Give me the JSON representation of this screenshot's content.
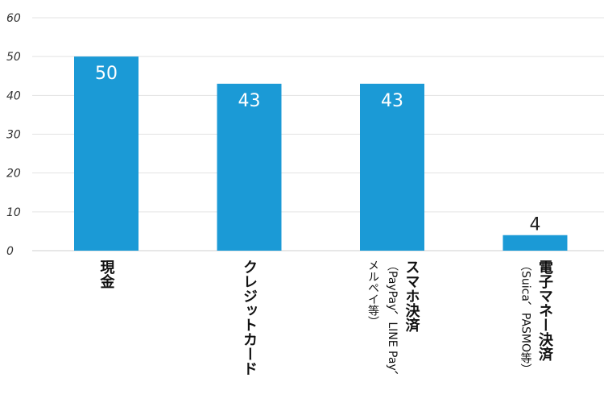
{
  "chart_data": {
    "type": "bar",
    "categories": [
      [
        "現金"
      ],
      [
        "クレジットカード"
      ],
      [
        "スマホ決済",
        "（PayPay、LINE Pay、",
        "メルペイ等）"
      ],
      [
        "電子マネー決済",
        "（Suica、PASMO等）"
      ]
    ],
    "values": [
      50,
      43,
      43,
      4
    ],
    "ylim": [
      0,
      60
    ],
    "yticks": [
      0,
      10,
      20,
      30,
      40,
      50,
      60
    ],
    "grid": true,
    "colors": {
      "bar": "#1b9ad6",
      "label_inside": "#ffffff",
      "label_outside": "#222222"
    }
  }
}
